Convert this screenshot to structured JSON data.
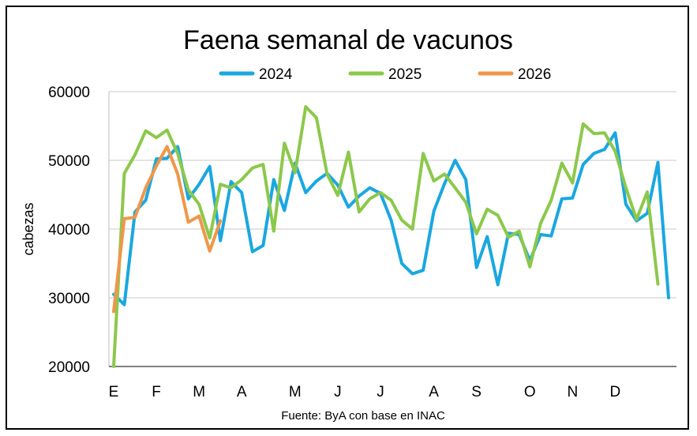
{
  "chart_data": {
    "type": "line",
    "title": "Faena semanal de vacunos",
    "ylabel": "cabezas",
    "xlabel": "",
    "source": "Fuente: ByA con base en INAC",
    "ylim": [
      20000,
      60000
    ],
    "yticks": [
      20000,
      30000,
      40000,
      50000,
      60000
    ],
    "xlim": [
      1,
      53
    ],
    "month_labels": [
      {
        "label": "E",
        "week": 1
      },
      {
        "label": "F",
        "week": 5
      },
      {
        "label": "M",
        "week": 9
      },
      {
        "label": "A",
        "week": 13
      },
      {
        "label": "M",
        "week": 18
      },
      {
        "label": "J",
        "week": 22
      },
      {
        "label": "J",
        "week": 26
      },
      {
        "label": "A",
        "week": 31
      },
      {
        "label": "S",
        "week": 35
      },
      {
        "label": "O",
        "week": 40
      },
      {
        "label": "N",
        "week": 44
      },
      {
        "label": "D",
        "week": 48
      }
    ],
    "grid": true,
    "legend_position": "top",
    "series": [
      {
        "name": "2024",
        "color": "#1aa7e0",
        "values": [
          30500,
          29000,
          42500,
          44200,
          50200,
          50300,
          52000,
          44400,
          46500,
          49100,
          38300,
          46900,
          45300,
          36700,
          37600,
          47200,
          42700,
          49600,
          45300,
          47000,
          48100,
          46400,
          43200,
          44800,
          46000,
          45200,
          41300,
          35000,
          33500,
          34000,
          42600,
          46600,
          50000,
          47200,
          34400,
          38900,
          31900,
          39400,
          39200,
          35400,
          39200,
          39000,
          44400,
          44500,
          49400,
          51000,
          51600,
          54000,
          43600,
          41200,
          42300,
          49700,
          30000
        ]
      },
      {
        "name": "2025",
        "color": "#8cc84b",
        "values": [
          20000,
          48100,
          50800,
          54300,
          53300,
          54400,
          51000,
          45700,
          43600,
          38700,
          46500,
          46000,
          47200,
          48900,
          49400,
          39700,
          52500,
          48200,
          57800,
          56200,
          48000,
          44900,
          51200,
          42500,
          44400,
          45300,
          44200,
          41300,
          40000,
          51000,
          47000,
          48000,
          46000,
          43900,
          39300,
          42900,
          42000,
          38800,
          39700,
          34500,
          40800,
          44200,
          49600,
          46700,
          55300,
          53900,
          54000,
          51300,
          46000,
          41400,
          45400,
          32000
        ]
      },
      {
        "name": "2026",
        "color": "#f0964a",
        "values": [
          28000,
          41500,
          41700,
          46000,
          49200,
          52000,
          48000,
          41000,
          41900,
          36800,
          41200
        ]
      }
    ]
  }
}
